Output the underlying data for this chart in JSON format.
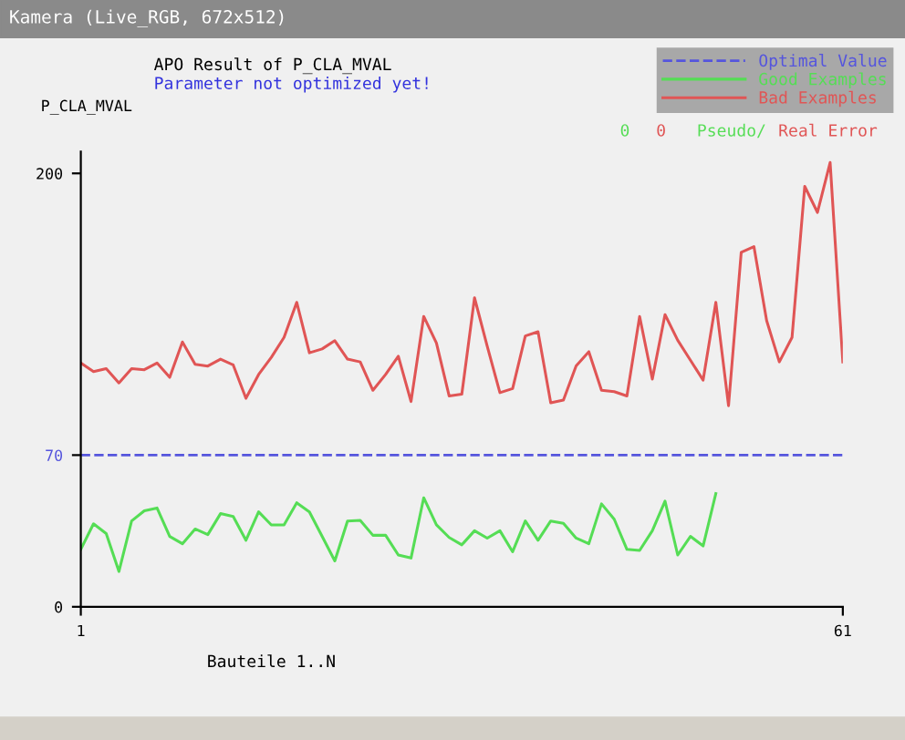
{
  "chart_data": {
    "type": "line",
    "title": "APO Result of P_CLA_MVAL",
    "subtitle": "Parameter not optimized yet!",
    "xlabel": "Bauteile 1..N",
    "ylabel": "P_CLA_MVAL",
    "annotations": [
      "Kamera (Live_RGB, 672x512)",
      "0",
      "0",
      "Pseudo/",
      "Real Error"
    ],
    "x": [
      1,
      2,
      3,
      4,
      5,
      6,
      7,
      8,
      9,
      10,
      11,
      12,
      13,
      14,
      15,
      16,
      17,
      18,
      19,
      20,
      21,
      22,
      23,
      24,
      25,
      26,
      27,
      28,
      29,
      30,
      31,
      32,
      33,
      34,
      35,
      36,
      37,
      38,
      39,
      40,
      41,
      42,
      43,
      44,
      45,
      46,
      47,
      48,
      49,
      50,
      51,
      52,
      53,
      54,
      55,
      56,
      57,
      58,
      59,
      60,
      61
    ],
    "series": [
      {
        "name": "Good Examples",
        "color": "#55dd55",
        "values": [
          26.5,
          38.3,
          33.8,
          16.3,
          39.6,
          44.3,
          45.6,
          32.5,
          29.1,
          35.9,
          33.3,
          43,
          41.7,
          30.7,
          43.8,
          37.8,
          37.8,
          48,
          43.8,
          32.5,
          21.2,
          39.6,
          39.9,
          33,
          33,
          23.9,
          22.5,
          50.3,
          37.8,
          32,
          28.6,
          35.1,
          31.7,
          35.1,
          25.4,
          39.6,
          30.7,
          39.6,
          38.5,
          31.7,
          29.1,
          47.5,
          40.4,
          26.5,
          26,
          35.1,
          48.8,
          23.9,
          32.5,
          28.1,
          52.2,
          null,
          null,
          null,
          null,
          null,
          null,
          null,
          null,
          null,
          null
        ]
      },
      {
        "name": "Bad Examples",
        "color": "#e05555",
        "values": [
          112.5,
          108.5,
          109.9,
          103.3,
          109.9,
          109.4,
          112.5,
          105.9,
          122.2,
          111.9,
          111.1,
          114.3,
          111.6,
          96.2,
          107.2,
          115.1,
          124.3,
          140.5,
          117.2,
          119,
          122.8,
          114.3,
          113,
          99.9,
          107.2,
          115.6,
          94.7,
          134,
          121.7,
          97.3,
          98.1,
          142.6,
          120.3,
          98.8,
          100.7,
          125,
          126.9,
          94.1,
          95.4,
          111.2,
          117.7,
          99.9,
          99.3,
          97.3,
          134,
          105.1,
          134.8,
          123,
          113.8,
          104.6,
          140.5,
          92.8,
          163.6,
          166.2,
          132.1,
          113,
          124.3,
          194,
          182,
          205,
          113
        ]
      }
    ],
    "ref_lines": [
      {
        "axis": "y",
        "value": 70,
        "label": "Optimal Value",
        "color": "#5555dd",
        "line_style": "dashed"
      }
    ],
    "xlim": [
      1,
      61
    ],
    "xticks": [
      1,
      61
    ],
    "ylim": [
      0,
      210
    ],
    "yticks": [
      0,
      70,
      200
    ],
    "grid": false,
    "legend": "top right",
    "marker": "none",
    "line_style": "solid"
  }
}
